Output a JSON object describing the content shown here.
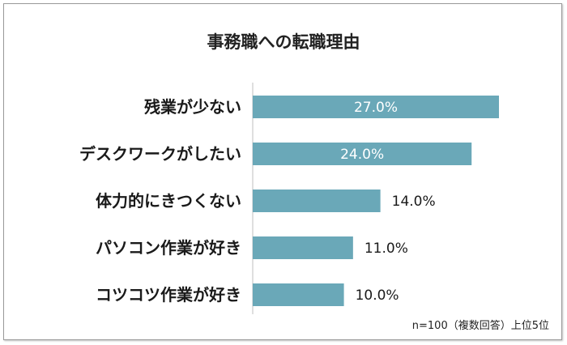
{
  "chart_data": {
    "type": "bar",
    "orientation": "horizontal",
    "title": "事務職への転職理由",
    "categories": [
      "残業が少ない",
      "デスクワークがしたい",
      "体力的にきつくない",
      "パソコン作業が好き",
      "コツコツ作業が好き"
    ],
    "values": [
      27.0,
      24.0,
      14.0,
      11.0,
      10.0
    ],
    "value_labels": [
      "27.0%",
      "24.0%",
      "14.0%",
      "11.0%",
      "10.0%"
    ],
    "note": "n=100（複数回答）上位5位",
    "bar_color": "#6aa8b8",
    "xlim": [
      0,
      27
    ],
    "grid": false
  }
}
